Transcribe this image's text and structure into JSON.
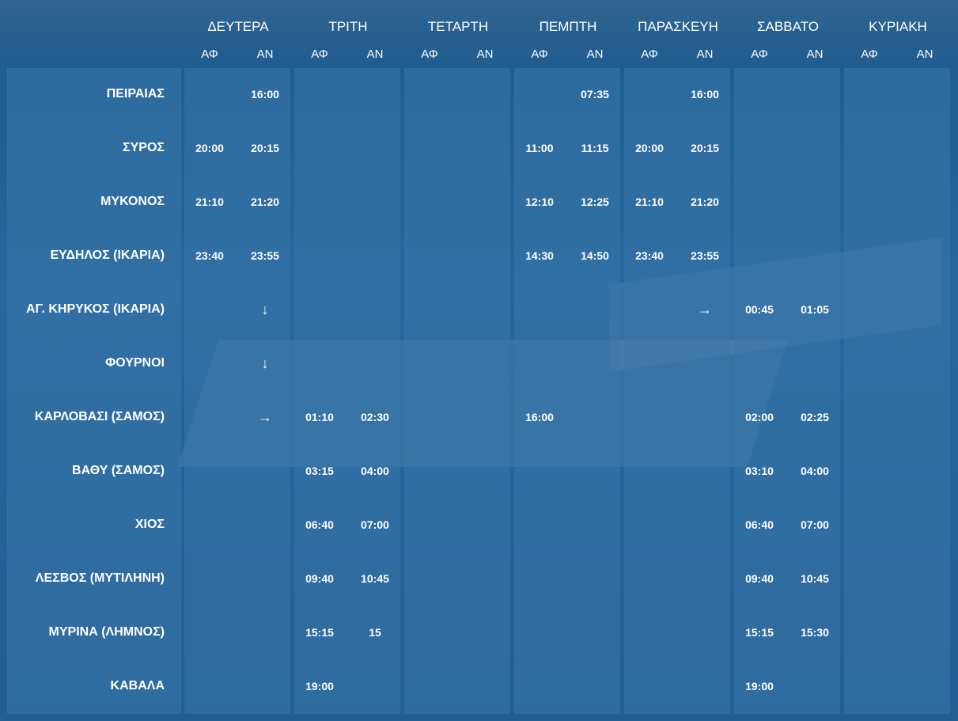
{
  "days": [
    {
      "name": "ΔΕΥΤΕΡΑ",
      "dep": "ΑΦ",
      "arr": "ΑΝ"
    },
    {
      "name": "ΤΡΙΤΗ",
      "dep": "ΑΦ",
      "arr": "ΑΝ"
    },
    {
      "name": "ΤΕΤΑΡΤΗ",
      "dep": "ΑΦ",
      "arr": "ΑΝ"
    },
    {
      "name": "ΠΕΜΠΤΗ",
      "dep": "ΑΦ",
      "arr": "ΑΝ"
    },
    {
      "name": "ΠΑΡΑΣΚΕΥΗ",
      "dep": "ΑΦ",
      "arr": "ΑΝ"
    },
    {
      "name": "ΣΑΒΒΑΤΟ",
      "dep": "ΑΦ",
      "arr": "ΑΝ"
    },
    {
      "name": "ΚΥΡΙΑΚΗ",
      "dep": "ΑΦ",
      "arr": "ΑΝ"
    }
  ],
  "ports": [
    {
      "name": "ΠΕΙΡΑΙΑΣ",
      "times": [
        "",
        "16:00",
        "",
        "",
        "",
        "",
        "",
        "07:35",
        "",
        "16:00",
        "",
        "",
        "",
        ""
      ]
    },
    {
      "name": "ΣΥΡΟΣ",
      "times": [
        "20:00",
        "20:15",
        "",
        "",
        "",
        "",
        "11:00",
        "11:15",
        "20:00",
        "20:15",
        "",
        "",
        "",
        ""
      ]
    },
    {
      "name": "ΜΥΚΟΝΟΣ",
      "times": [
        "21:10",
        "21:20",
        "",
        "",
        "",
        "",
        "12:10",
        "12:25",
        "21:10",
        "21:20",
        "",
        "",
        "",
        ""
      ]
    },
    {
      "name": "ΕΥΔΗΛΟΣ (ΙΚΑΡΙΑ)",
      "times": [
        "23:40",
        "23:55",
        "",
        "",
        "",
        "",
        "14:30",
        "14:50",
        "23:40",
        "23:55",
        "",
        "",
        "",
        ""
      ]
    },
    {
      "name": "ΑΓ. ΚΗΡΥΚΟΣ (ΙΚΑΡΙΑ)",
      "times": [
        "",
        "↓",
        "",
        "",
        "",
        "",
        "",
        "",
        "",
        "→",
        "00:45",
        "01:05",
        "",
        ""
      ]
    },
    {
      "name": "ΦΟΥΡΝΟΙ",
      "times": [
        "",
        "↓",
        "",
        "",
        "",
        "",
        "",
        "",
        "",
        "",
        "",
        "",
        "",
        ""
      ]
    },
    {
      "name": "ΚΑΡΛΟΒΑΣΙ (ΣΑΜΟΣ)",
      "times": [
        "",
        "→",
        "01:10",
        "02:30",
        "",
        "",
        "16:00",
        "",
        "",
        "",
        "02:00",
        "02:25",
        "",
        ""
      ]
    },
    {
      "name": "ΒΑΘΥ (ΣΑΜΟΣ)",
      "times": [
        "",
        "",
        "03:15",
        "04:00",
        "",
        "",
        "",
        "",
        "",
        "",
        "03:10",
        "04:00",
        "",
        ""
      ]
    },
    {
      "name": "ΧΙΟΣ",
      "times": [
        "",
        "",
        "06:40",
        "07:00",
        "",
        "",
        "",
        "",
        "",
        "",
        "06:40",
        "07:00",
        "",
        ""
      ]
    },
    {
      "name": "ΛΕΣΒΟΣ (ΜΥΤΙΛΗΝΗ)",
      "times": [
        "",
        "",
        "09:40",
        "10:45",
        "",
        "",
        "",
        "",
        "",
        "",
        "09:40",
        "10:45",
        "",
        ""
      ]
    },
    {
      "name": "ΜΥΡΙΝΑ (ΛΗΜΝΟΣ)",
      "times": [
        "",
        "",
        "15:15",
        "15",
        "",
        "",
        "",
        "",
        "",
        "",
        "15:15",
        "15:30",
        "",
        ""
      ]
    },
    {
      "name": "ΚΑΒΑΛΑ",
      "times": [
        "",
        "",
        "19:00",
        "",
        "",
        "",
        "",
        "",
        "",
        "",
        "19:00",
        "",
        "",
        ""
      ]
    }
  ],
  "colors": {
    "background": "#235e93",
    "panel": "#3a76aa",
    "text": "#ffffff"
  }
}
